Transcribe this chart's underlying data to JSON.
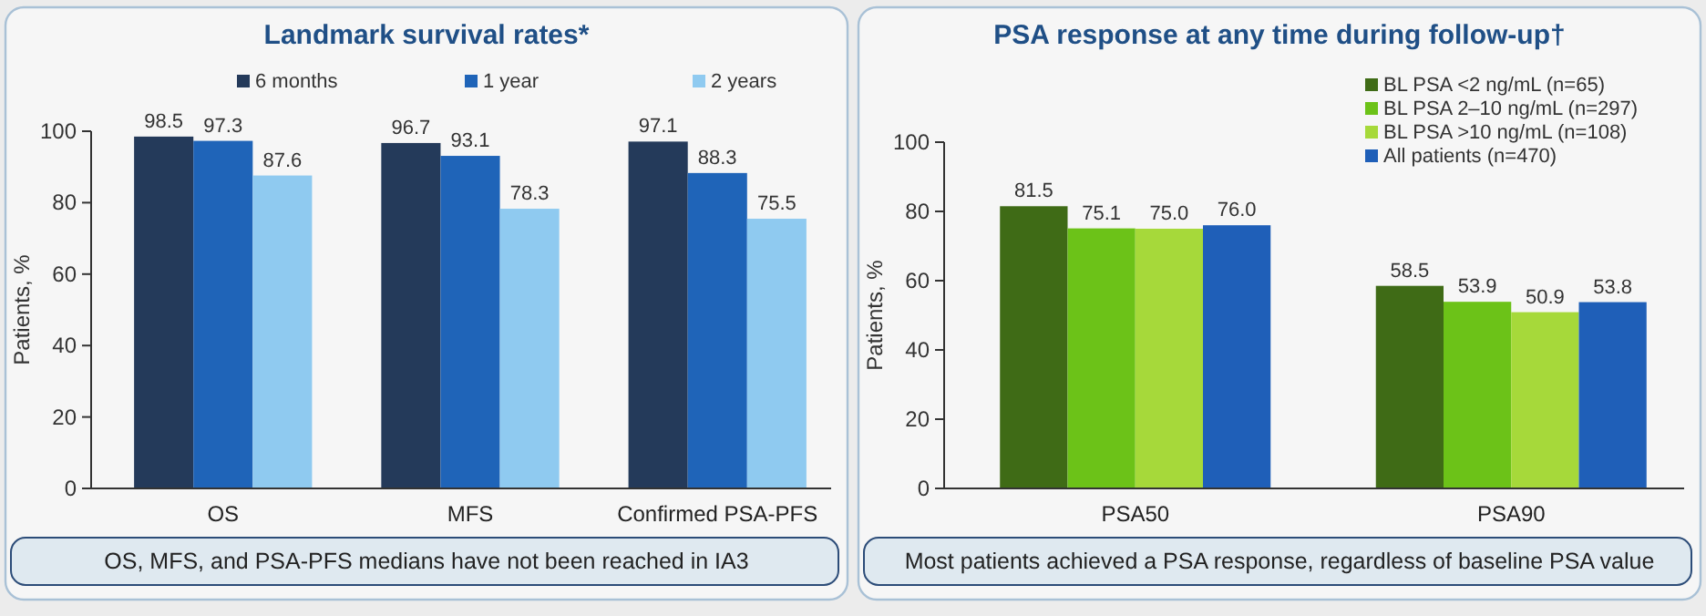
{
  "chart_data": [
    {
      "type": "bar",
      "title": "Landmark survival rates*",
      "ylabel": "Patients, %",
      "categories": [
        "OS",
        "MFS",
        "Confirmed PSA-PFS"
      ],
      "series": [
        {
          "name": "6 months",
          "color": "#243a5a",
          "values": [
            98.5,
            96.7,
            97.1
          ]
        },
        {
          "name": "1 year",
          "color": "#1f64b8",
          "values": [
            97.3,
            93.1,
            88.3
          ]
        },
        {
          "name": "2 years",
          "color": "#8fcaf0",
          "values": [
            87.6,
            78.3,
            75.5
          ]
        }
      ],
      "ylim": [
        0,
        100
      ],
      "yticks": [
        0,
        20,
        40,
        60,
        80,
        100
      ],
      "data_labels": true,
      "legend": "top",
      "grid": false,
      "annotations": [
        "OS, MFS, and PSA-PFS medians have not been reached in IA3"
      ]
    },
    {
      "type": "bar",
      "title": "PSA response at any time during follow-up†",
      "ylabel": "Patients, %",
      "categories": [
        "PSA50",
        "PSA90"
      ],
      "series": [
        {
          "name": "BL PSA <2 ng/mL (n=65)",
          "color": "#3f6b16",
          "values": [
            81.5,
            58.5
          ]
        },
        {
          "name": "BL PSA 2–10 ng/mL (n=297)",
          "color": "#6cc218",
          "values": [
            75.1,
            53.9
          ]
        },
        {
          "name": "BL PSA >10 ng/mL (n=108)",
          "color": "#a6d93a",
          "values": [
            75.0,
            50.9
          ],
          "value_labels": [
            "75.0",
            "50.9"
          ]
        },
        {
          "name": "All patients (n=470)",
          "color": "#1f5fb8",
          "values": [
            76.0,
            53.8
          ],
          "value_labels": [
            "76.0",
            "53.8"
          ]
        }
      ],
      "ylim": [
        0,
        100
      ],
      "yticks": [
        0,
        20,
        40,
        60,
        80,
        100
      ],
      "data_labels": true,
      "legend": "top right",
      "grid": false,
      "annotations": [
        "Most patients achieved a PSA response, regardless of baseline PSA value"
      ]
    }
  ]
}
